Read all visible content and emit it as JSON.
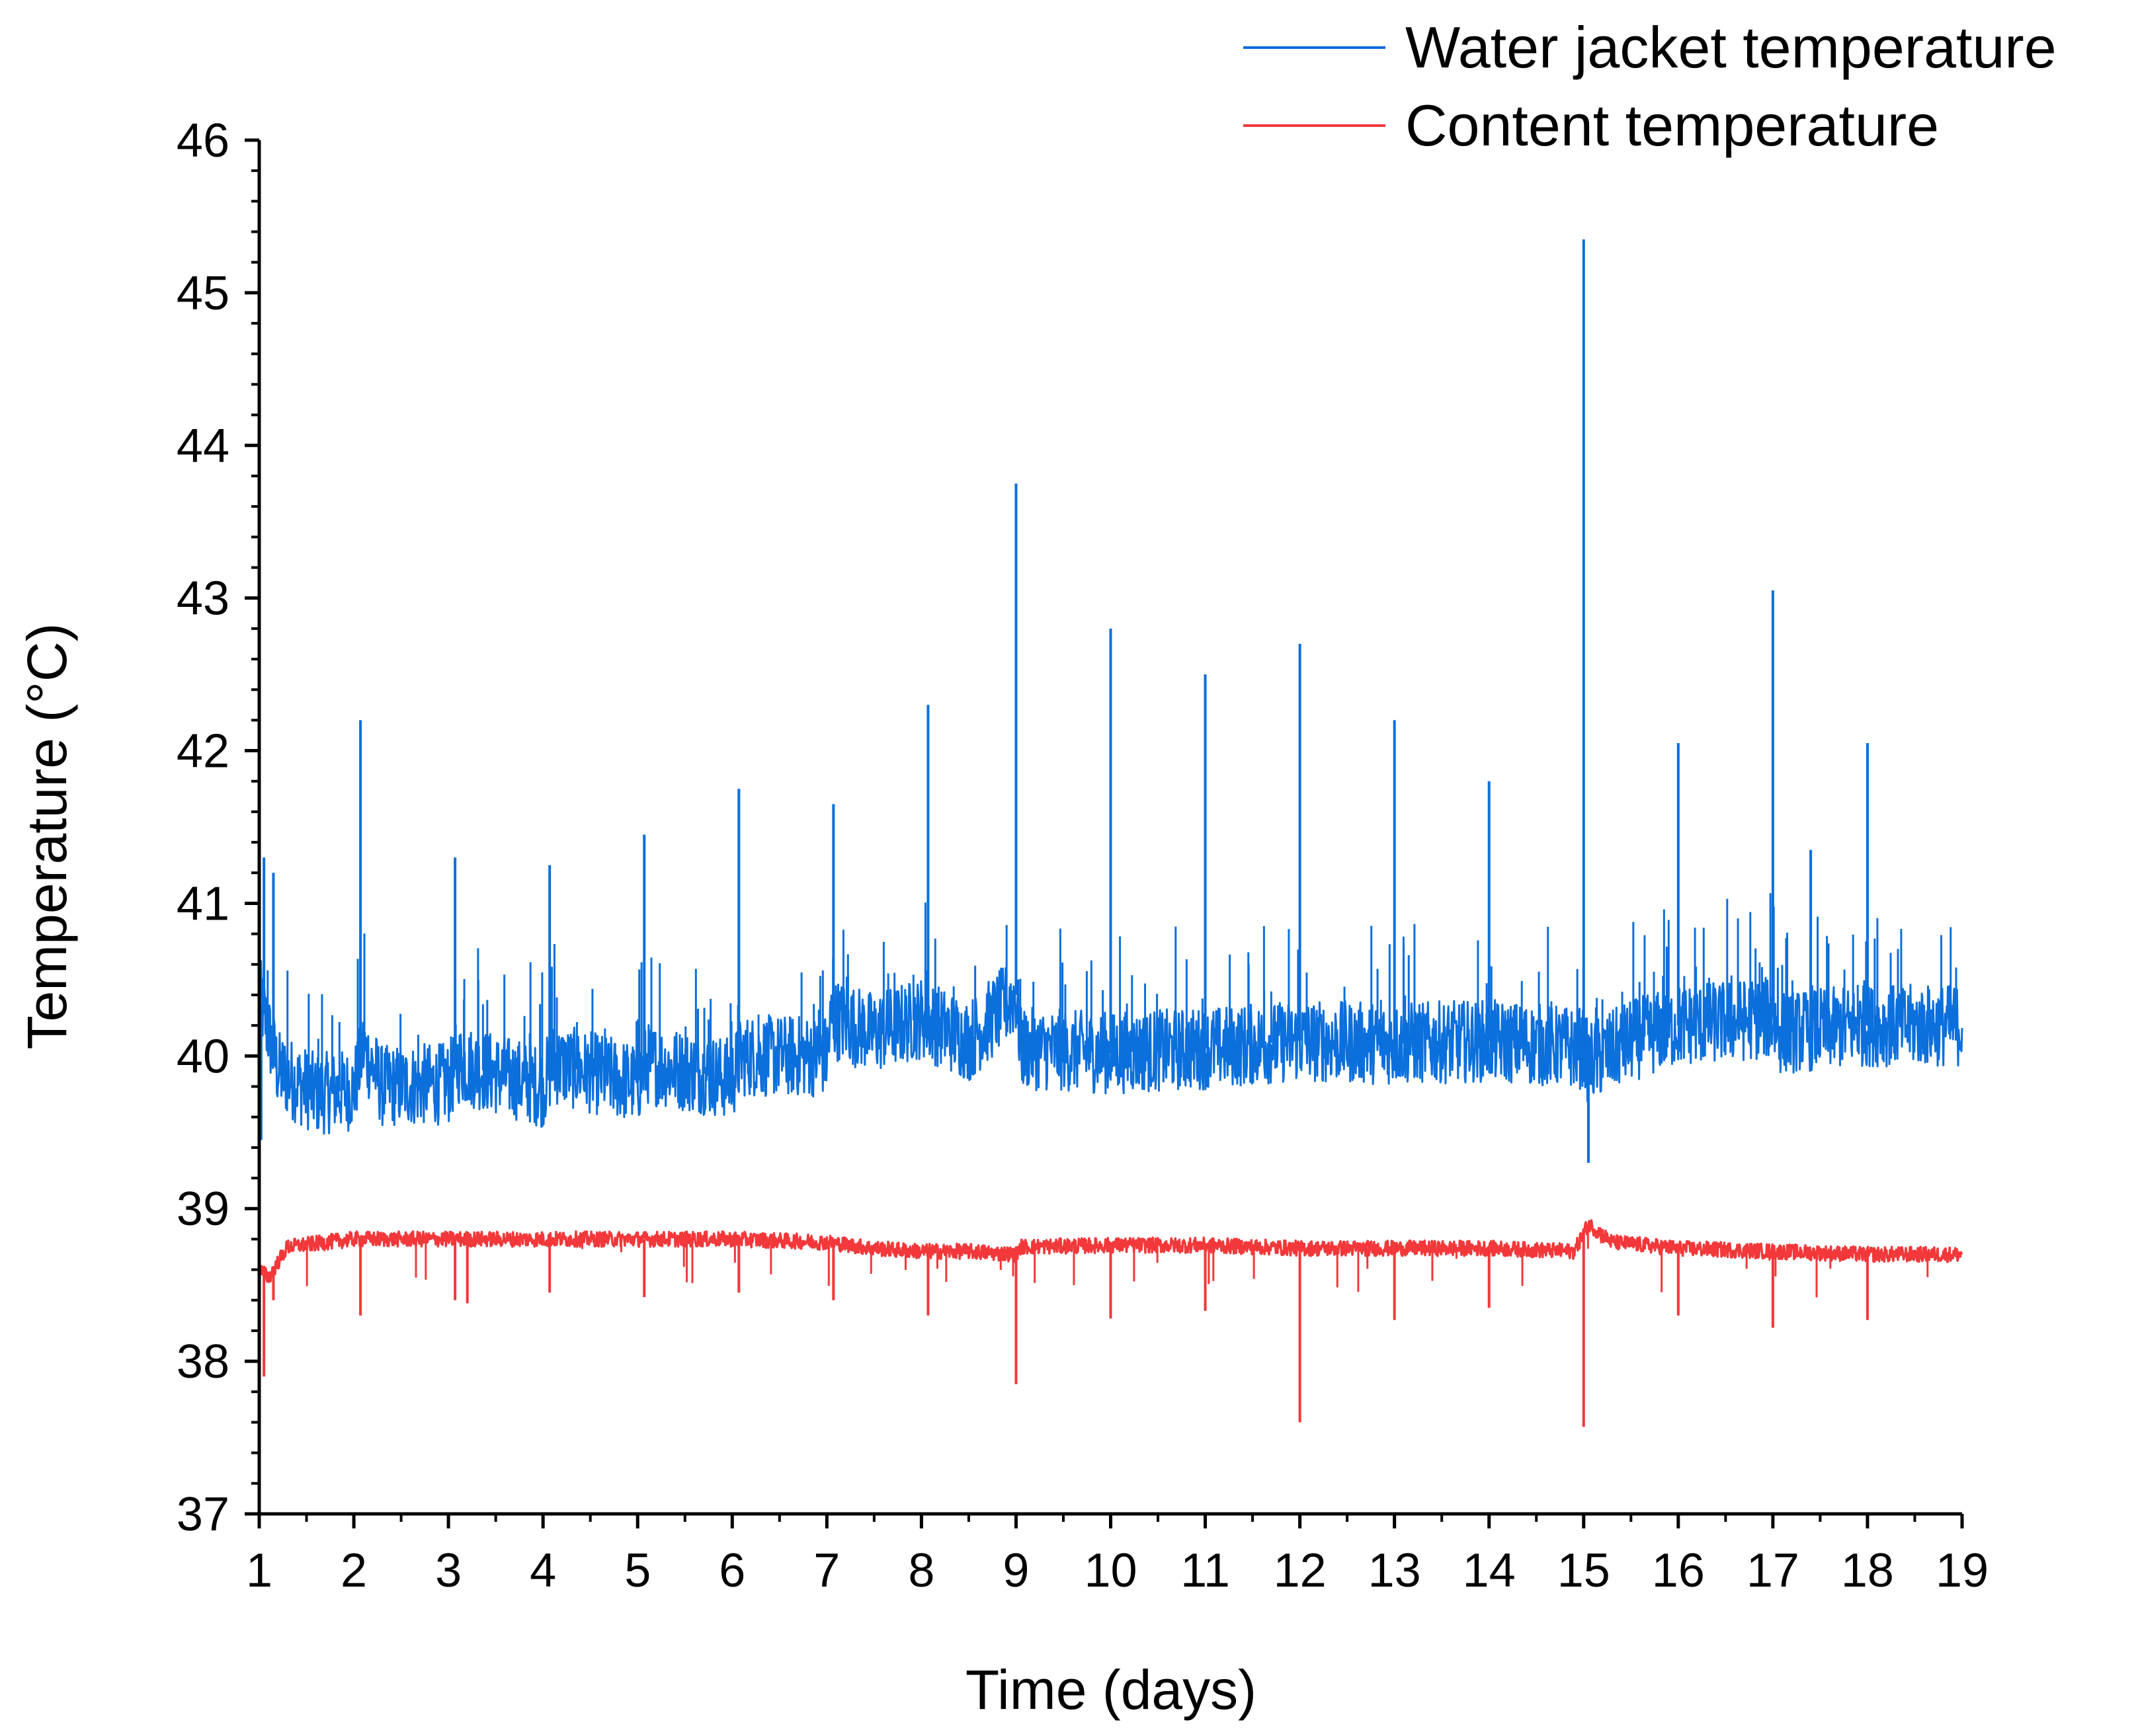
{
  "chart_data": {
    "type": "line",
    "title": "",
    "xlabel": "Time (days)",
    "ylabel": "Temperature (°C)",
    "xlim": [
      1,
      19
    ],
    "ylim": [
      37,
      46
    ],
    "x_ticks": [
      "1",
      "2",
      "3",
      "4",
      "5",
      "6",
      "7",
      "8",
      "9",
      "10",
      "11",
      "12",
      "13",
      "14",
      "15",
      "16",
      "17",
      "18",
      "19"
    ],
    "y_ticks": [
      "37",
      "38",
      "39",
      "40",
      "41",
      "42",
      "43",
      "44",
      "45",
      "46"
    ],
    "legend_position": "top-right",
    "series": [
      {
        "name": "Water jacket temperature",
        "color": "#0b6fdc",
        "baseline": [
          [
            1.0,
            40.4
          ],
          [
            1.2,
            39.9
          ],
          [
            1.6,
            39.75
          ],
          [
            2.0,
            39.78
          ],
          [
            2.1,
            40.05
          ],
          [
            2.3,
            39.8
          ],
          [
            3.0,
            39.82
          ],
          [
            3.1,
            39.95
          ],
          [
            4.0,
            39.8
          ],
          [
            4.1,
            39.95
          ],
          [
            5.0,
            39.82
          ],
          [
            5.1,
            39.95
          ],
          [
            6.0,
            39.85
          ],
          [
            6.1,
            40.0
          ],
          [
            7.0,
            40.0
          ],
          [
            7.05,
            40.25
          ],
          [
            7.5,
            40.15
          ],
          [
            8.0,
            40.25
          ],
          [
            8.5,
            40.1
          ],
          [
            9.0,
            40.4
          ],
          [
            9.05,
            40.05
          ],
          [
            10.0,
            40.02
          ],
          [
            11.0,
            40.05
          ],
          [
            12.0,
            40.1
          ],
          [
            13.0,
            40.08
          ],
          [
            14.0,
            40.1
          ],
          [
            15.0,
            40.05
          ],
          [
            15.05,
            39.95
          ],
          [
            15.5,
            40.1
          ],
          [
            16.0,
            40.2
          ],
          [
            17.0,
            40.25
          ],
          [
            17.05,
            40.15
          ],
          [
            18.0,
            40.2
          ],
          [
            19.0,
            40.2
          ]
        ],
        "noise_band": 0.27,
        "spikes": [
          [
            1.05,
            41.3
          ],
          [
            1.15,
            41.2
          ],
          [
            2.07,
            42.2
          ],
          [
            3.07,
            41.3
          ],
          [
            4.07,
            41.25
          ],
          [
            5.07,
            41.45
          ],
          [
            6.07,
            41.75
          ],
          [
            7.07,
            41.65
          ],
          [
            8.07,
            42.3
          ],
          [
            9.0,
            43.75
          ],
          [
            10.0,
            42.8
          ],
          [
            11.0,
            42.5
          ],
          [
            12.0,
            42.7
          ],
          [
            13.0,
            42.2
          ],
          [
            14.0,
            41.8
          ],
          [
            15.0,
            45.35
          ],
          [
            16.0,
            42.05
          ],
          [
            17.0,
            43.05
          ],
          [
            17.4,
            41.35
          ],
          [
            18.0,
            42.05
          ]
        ],
        "dips": [
          [
            1.02,
            39.45
          ],
          [
            15.05,
            39.3
          ]
        ]
      },
      {
        "name": "Content temperature",
        "color": "#f2383a",
        "baseline": [
          [
            1.0,
            38.6
          ],
          [
            1.1,
            38.55
          ],
          [
            1.3,
            38.75
          ],
          [
            2.0,
            38.8
          ],
          [
            3.0,
            38.8
          ],
          [
            4.0,
            38.8
          ],
          [
            5.0,
            38.8
          ],
          [
            6.0,
            38.8
          ],
          [
            7.0,
            38.78
          ],
          [
            7.5,
            38.74
          ],
          [
            8.0,
            38.72
          ],
          [
            8.5,
            38.72
          ],
          [
            9.0,
            38.7
          ],
          [
            9.05,
            38.75
          ],
          [
            10.0,
            38.76
          ],
          [
            11.0,
            38.76
          ],
          [
            12.0,
            38.74
          ],
          [
            13.0,
            38.74
          ],
          [
            14.0,
            38.74
          ],
          [
            14.9,
            38.72
          ],
          [
            15.05,
            38.9
          ],
          [
            15.3,
            38.78
          ],
          [
            16.0,
            38.74
          ],
          [
            17.0,
            38.72
          ],
          [
            18.0,
            38.7
          ],
          [
            19.0,
            38.7
          ]
        ],
        "noise_band": 0.05,
        "dips": [
          [
            1.05,
            37.9
          ],
          [
            1.15,
            38.4
          ],
          [
            2.07,
            38.3
          ],
          [
            3.07,
            38.4
          ],
          [
            3.2,
            38.38
          ],
          [
            4.07,
            38.45
          ],
          [
            5.07,
            38.42
          ],
          [
            6.07,
            38.45
          ],
          [
            7.07,
            38.4
          ],
          [
            8.07,
            38.3
          ],
          [
            9.0,
            37.85
          ],
          [
            10.0,
            38.28
          ],
          [
            11.0,
            38.33
          ],
          [
            12.0,
            37.6
          ],
          [
            13.0,
            38.27
          ],
          [
            14.0,
            38.35
          ],
          [
            15.0,
            37.57
          ],
          [
            16.0,
            38.3
          ],
          [
            17.0,
            38.22
          ],
          [
            18.0,
            38.27
          ]
        ]
      }
    ]
  }
}
